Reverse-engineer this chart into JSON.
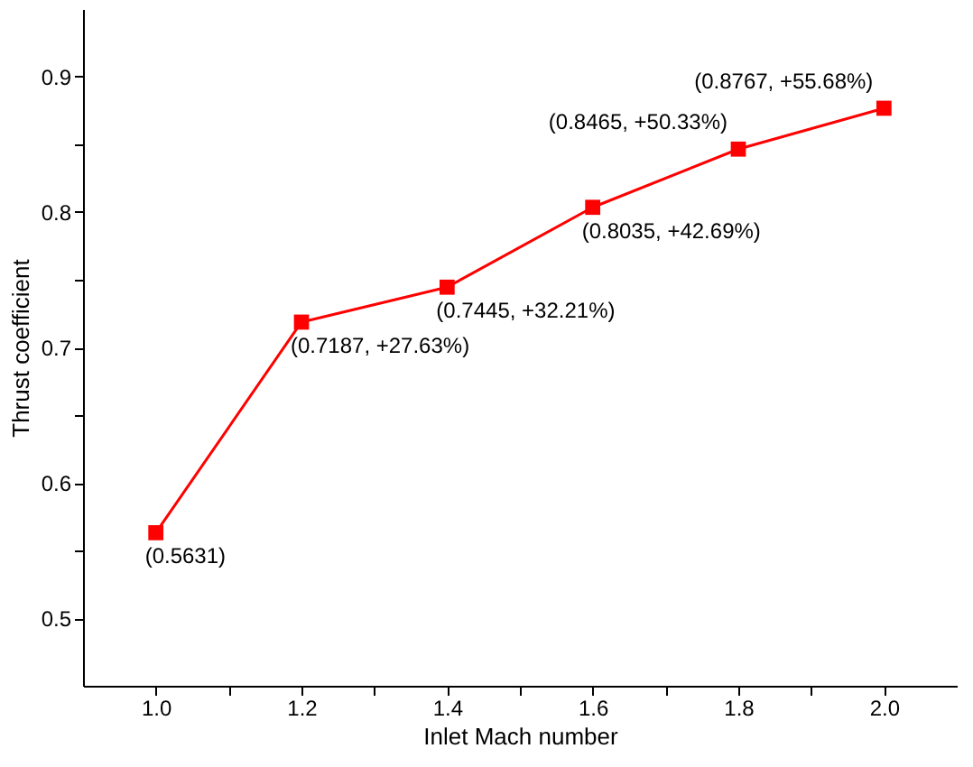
{
  "chart_data": {
    "type": "line",
    "xlabel": "Inlet Mach number",
    "ylabel": "Thrust coefficient",
    "x": [
      1.0,
      1.2,
      1.4,
      1.6,
      1.8,
      2.0
    ],
    "series": [
      {
        "color": "#ff0000",
        "values": [
          0.5631,
          0.7187,
          0.7445,
          0.8035,
          0.8465,
          0.8767
        ],
        "value_labels": [
          "(0.5631)",
          "(0.7187, +27.63%)",
          "(0.7445, +32.21%)",
          "(0.8035, +42.69%)",
          "(0.8465, +50.33%)",
          "(0.8767, +55.68%)"
        ]
      }
    ],
    "xlim": [
      0.9,
      2.1
    ],
    "xticks": [
      {
        "value": 1,
        "label": "1.0"
      },
      {
        "value": 1.1,
        "label": null
      },
      1.2,
      {
        "value": 1.3,
        "label": null
      },
      1.4,
      {
        "value": 1.5,
        "label": null
      },
      1.6,
      {
        "value": 1.7,
        "label": null
      },
      1.8,
      {
        "value": 1.9,
        "label": null
      },
      {
        "value": 2,
        "label": "2.0"
      }
    ],
    "ylim": [
      0.45,
      0.95
    ],
    "yticks": [
      0.5,
      {
        "value": 0.55,
        "label": null
      },
      0.6,
      {
        "value": 0.65,
        "label": null
      },
      0.7,
      {
        "value": 0.75,
        "label": null
      },
      0.8,
      {
        "value": 0.85,
        "label": null
      },
      0.9
    ],
    "marker": "square",
    "line_style": "solid",
    "grid": false
  }
}
